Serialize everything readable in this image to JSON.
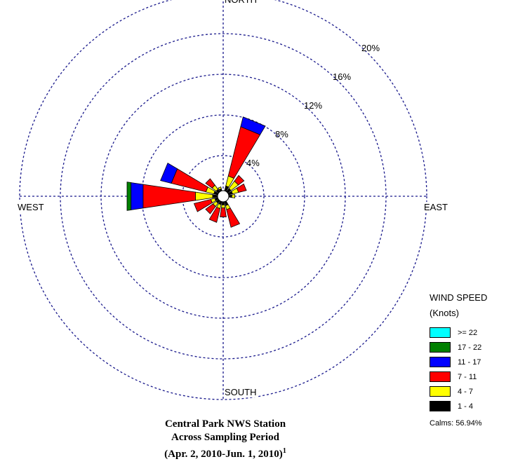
{
  "chart_data": {
    "type": "wind-rose",
    "directions": [
      "NORTH",
      "EAST",
      "SOUTH",
      "WEST"
    ],
    "ring_labels": [
      "4%",
      "8%",
      "12%",
      "16%",
      "20%"
    ],
    "ring_values": [
      4,
      8,
      12,
      16,
      20
    ],
    "speed_bins": [
      {
        "label": ">= 22",
        "color": "#00ffff"
      },
      {
        "label": "17 - 22",
        "color": "#008000"
      },
      {
        "label": "11 - 17",
        "color": "#0000ff"
      },
      {
        "label": "7 - 11",
        "color": "#ff0000"
      },
      {
        "label": "4 - 7",
        "color": "#ffff00"
      },
      {
        "label": "1 - 4",
        "color": "#000000"
      }
    ],
    "petals": [
      {
        "direction_deg": 22.5,
        "cumulative_percent": [
          0.5,
          1.5,
          6.5,
          7.5,
          7.5,
          7.5
        ]
      },
      {
        "direction_deg": 45,
        "cumulative_percent": [
          0.4,
          1.3,
          2.0,
          2.0,
          2.0,
          2.0
        ]
      },
      {
        "direction_deg": 67.5,
        "cumulative_percent": [
          0.4,
          1.0,
          1.8,
          1.8,
          1.8,
          1.8
        ]
      },
      {
        "direction_deg": 90,
        "cumulative_percent": [
          0.3,
          0.6,
          0.6,
          0.6,
          0.6,
          0.6
        ]
      },
      {
        "direction_deg": 157.5,
        "cumulative_percent": [
          0.4,
          0.8,
          2.6,
          2.6,
          2.6,
          2.6
        ]
      },
      {
        "direction_deg": 180,
        "cumulative_percent": [
          0.3,
          0.6,
          1.5,
          1.5,
          1.5,
          1.5
        ]
      },
      {
        "direction_deg": 202.5,
        "cumulative_percent": [
          0.3,
          0.7,
          2.1,
          2.1,
          2.1,
          2.1
        ]
      },
      {
        "direction_deg": 225,
        "cumulative_percent": [
          0.3,
          0.7,
          1.6,
          1.6,
          1.6,
          1.6
        ]
      },
      {
        "direction_deg": 247.5,
        "cumulative_percent": [
          0.3,
          0.7,
          2.4,
          2.4,
          2.4,
          2.4
        ]
      },
      {
        "direction_deg": 270,
        "cumulative_percent": [
          0.5,
          2.2,
          7.4,
          8.6,
          9.0,
          9.0
        ]
      },
      {
        "direction_deg": 292.5,
        "cumulative_percent": [
          0.4,
          1.2,
          4.7,
          5.8,
          5.8,
          5.8
        ]
      },
      {
        "direction_deg": 315,
        "cumulative_percent": [
          0.3,
          0.8,
          1.6,
          1.6,
          1.6,
          1.6
        ]
      },
      {
        "direction_deg": 337.5,
        "cumulative_percent": [
          0.2,
          0.4,
          0.4,
          0.4,
          0.4,
          0.4
        ]
      }
    ],
    "calms_percent": 56.94
  },
  "legend": {
    "title_line1": "WIND SPEED",
    "title_line2": "(Knots)",
    "calms": "Calms: 56.94%"
  },
  "caption": {
    "line1": "Central Park NWS Station",
    "line2": "Across Sampling Period",
    "line3": "(Apr. 2, 2010-Jun. 1, 2010)",
    "footnote": "1"
  }
}
